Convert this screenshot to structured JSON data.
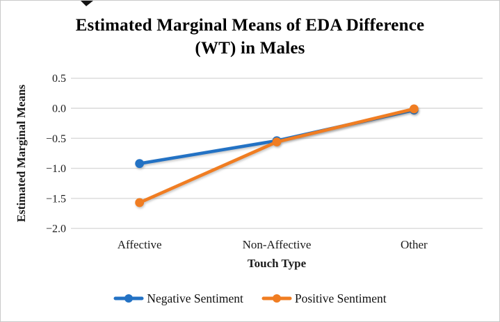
{
  "figure": {
    "title_line1": "Estimated Marginal Means of EDA Difference",
    "title_line2": "(WT) in Males"
  },
  "chart_data": {
    "type": "line",
    "title": "Estimated Marginal Means of EDA Difference (WT) in Males",
    "xlabel": "Touch Type",
    "ylabel": "Estimated Marginal Means",
    "categories": [
      "Affective",
      "Non-Affective",
      "Other"
    ],
    "series": [
      {
        "name": "Negative Sentiment",
        "color": "#2372C4",
        "values": [
          -0.92,
          -0.54,
          -0.03
        ]
      },
      {
        "name": "Positive Sentiment",
        "color": "#F07D22",
        "values": [
          -1.57,
          -0.56,
          -0.01
        ]
      }
    ],
    "y_ticks": [
      0.5,
      0.0,
      -0.5,
      -1.0,
      -1.5,
      -2.0
    ],
    "y_tick_labels": [
      "0.5",
      "0.0",
      "−0.5",
      "−1.0",
      "−1.5",
      "−2.0"
    ],
    "ylim": [
      -2.0,
      0.5
    ],
    "grid": "horizontal",
    "gridline_color": "#d9d9d9",
    "legend_position": "bottom",
    "marker": "circle"
  }
}
